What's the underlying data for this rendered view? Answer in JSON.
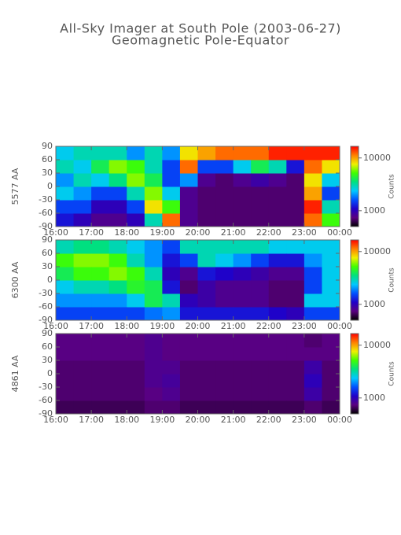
{
  "chart_data": [
    {
      "type": "heatmap",
      "title": "All-Sky Imager at South Pole (2003-06-27)",
      "subtitle": "Geomagnetic Pole-Equator",
      "ylabel": "5577 AA",
      "xlim": [
        16,
        24
      ],
      "xticks": [
        {
          "value": 16,
          "label": "16:00"
        },
        {
          "value": 17,
          "label": "17:00"
        },
        {
          "value": 18,
          "label": "18:00"
        },
        {
          "value": 19,
          "label": "19:00"
        },
        {
          "value": 20,
          "label": "20:00"
        },
        {
          "value": 21,
          "label": "21:00"
        },
        {
          "value": 22,
          "label": "22:00"
        },
        {
          "value": 23,
          "label": "23:00"
        },
        {
          "value": 24,
          "label": "00:00"
        }
      ],
      "ylim": [
        -90,
        90
      ],
      "yticks": [
        -90,
        -60,
        -30,
        0,
        30,
        60,
        90
      ],
      "xbins": [
        16,
        16.5,
        17,
        17.5,
        18,
        18.5,
        19,
        19.5,
        20,
        20.5,
        21,
        21.5,
        22,
        22.5,
        23,
        23.5,
        24
      ],
      "ybins": [
        -90,
        -60,
        -30,
        0,
        30,
        60,
        90
      ],
      "z": [
        [
          1200,
          1500,
          2500,
          2000,
          3000,
          2500
        ],
        [
          1000,
          1500,
          2000,
          3000,
          2500,
          3000
        ],
        [
          800,
          1000,
          1500,
          2500,
          4000,
          3000
        ],
        [
          800,
          1000,
          1500,
          3500,
          6000,
          3000
        ],
        [
          1000,
          1500,
          3000,
          6000,
          5000,
          2000
        ],
        [
          3000,
          8000,
          6000,
          4000,
          3000,
          3000
        ],
        [
          12000,
          5000,
          2500,
          1500,
          1500,
          2000
        ],
        [
          800,
          800,
          800,
          2000,
          12000,
          8000
        ],
        [
          700,
          700,
          700,
          800,
          1500,
          10000
        ],
        [
          700,
          700,
          700,
          700,
          1500,
          12000
        ],
        [
          700,
          700,
          700,
          800,
          2500,
          12000
        ],
        [
          700,
          700,
          700,
          900,
          4000,
          12000
        ],
        [
          700,
          700,
          700,
          800,
          3000,
          15000
        ],
        [
          700,
          700,
          700,
          700,
          1200,
          15000
        ],
        [
          12000,
          15000,
          10000,
          8000,
          12000,
          15000
        ],
        [
          5000,
          3000,
          1500,
          2500,
          8000,
          15000
        ]
      ],
      "colorbar": {
        "label": "Counts",
        "lim": [
          500,
          16600
        ],
        "ticks": [
          1000,
          10000
        ],
        "log": true
      },
      "colormap": [
        "#000000",
        "#5a0080",
        "#2000c8",
        "#0050ff",
        "#00c8ff",
        "#00e080",
        "#40ff00",
        "#f0f000",
        "#ff8000",
        "#ff0000"
      ]
    },
    {
      "type": "heatmap",
      "ylabel": "6300 AA",
      "xlim": [
        16,
        24
      ],
      "xticks": [
        {
          "value": 16,
          "label": "16:00"
        },
        {
          "value": 17,
          "label": "17:00"
        },
        {
          "value": 18,
          "label": "18:00"
        },
        {
          "value": 19,
          "label": "19:00"
        },
        {
          "value": 20,
          "label": "20:00"
        },
        {
          "value": 21,
          "label": "21:00"
        },
        {
          "value": 22,
          "label": "22:00"
        },
        {
          "value": 23,
          "label": "23:00"
        },
        {
          "value": 24,
          "label": "00:00"
        }
      ],
      "ylim": [
        -90,
        90
      ],
      "yticks": [
        -90,
        -60,
        -30,
        0,
        30,
        60,
        90
      ],
      "xbins": [
        16,
        16.5,
        17,
        17.5,
        18,
        18.5,
        19,
        19.5,
        20,
        20.5,
        21,
        21.5,
        22,
        22.5,
        23,
        23.5,
        24
      ],
      "ybins": [
        -90,
        -60,
        -30,
        0,
        30,
        60,
        90
      ],
      "z": [
        [
          1500,
          2000,
          2500,
          4000,
          5000,
          3000
        ],
        [
          1500,
          2000,
          3000,
          5000,
          6000,
          3500
        ],
        [
          1500,
          2000,
          3000,
          5000,
          6000,
          3500
        ],
        [
          1500,
          2000,
          3500,
          6000,
          5000,
          3000
        ],
        [
          1500,
          2500,
          4500,
          5000,
          3000,
          2500
        ],
        [
          1800,
          4000,
          4000,
          3000,
          2000,
          2000
        ],
        [
          2000,
          3000,
          1200,
          1000,
          1200,
          1500
        ],
        [
          1200,
          1000,
          700,
          800,
          1500,
          3000
        ],
        [
          1200,
          900,
          900,
          1200,
          3000,
          3000
        ],
        [
          1200,
          800,
          800,
          1100,
          2500,
          3000
        ],
        [
          1200,
          800,
          800,
          1000,
          2000,
          3000
        ],
        [
          1200,
          800,
          800,
          900,
          1500,
          3000
        ],
        [
          1100,
          700,
          700,
          800,
          1200,
          2500
        ],
        [
          1000,
          700,
          700,
          800,
          1200,
          2500
        ],
        [
          1500,
          2500,
          1500,
          1500,
          2000,
          2500
        ],
        [
          1500,
          2500,
          2500,
          2500,
          2500,
          2500
        ]
      ],
      "colorbar": {
        "label": "Counts",
        "lim": [
          500,
          16600
        ],
        "ticks": [
          1000,
          10000
        ],
        "log": true
      },
      "colormap": [
        "#000000",
        "#5a0080",
        "#2000c8",
        "#0050ff",
        "#00c8ff",
        "#00e080",
        "#40ff00",
        "#f0f000",
        "#ff8000",
        "#ff0000"
      ]
    },
    {
      "type": "heatmap",
      "ylabel": "4861 AA",
      "xlim": [
        16,
        24
      ],
      "xticks": [
        {
          "value": 16,
          "label": "16:00"
        },
        {
          "value": 17,
          "label": "17:00"
        },
        {
          "value": 18,
          "label": "18:00"
        },
        {
          "value": 19,
          "label": "19:00"
        },
        {
          "value": 20,
          "label": "20:00"
        },
        {
          "value": 21,
          "label": "21:00"
        },
        {
          "value": 22,
          "label": "22:00"
        },
        {
          "value": 23,
          "label": "23:00"
        },
        {
          "value": 24,
          "label": "00:00"
        }
      ],
      "ylim": [
        -90,
        90
      ],
      "yticks": [
        -90,
        -60,
        -30,
        0,
        30,
        60,
        90
      ],
      "xbins": [
        16,
        16.5,
        17,
        17.5,
        18,
        18.5,
        19,
        19.5,
        20,
        20.5,
        21,
        21.5,
        22,
        22.5,
        23,
        23.5,
        24
      ],
      "ybins": [
        -90,
        -60,
        -30,
        0,
        30,
        60,
        90
      ],
      "z": [
        [
          650,
          700,
          700,
          700,
          750,
          750
        ],
        [
          650,
          700,
          700,
          700,
          750,
          750
        ],
        [
          650,
          700,
          700,
          700,
          750,
          750
        ],
        [
          650,
          700,
          700,
          700,
          750,
          750
        ],
        [
          650,
          700,
          700,
          700,
          750,
          750
        ],
        [
          700,
          750,
          800,
          800,
          800,
          800
        ],
        [
          700,
          800,
          850,
          800,
          750,
          750
        ],
        [
          650,
          700,
          700,
          700,
          750,
          750
        ],
        [
          650,
          700,
          700,
          700,
          750,
          750
        ],
        [
          650,
          700,
          700,
          700,
          750,
          750
        ],
        [
          650,
          700,
          700,
          700,
          750,
          750
        ],
        [
          650,
          700,
          700,
          700,
          750,
          750
        ],
        [
          650,
          700,
          700,
          700,
          750,
          750
        ],
        [
          650,
          700,
          700,
          700,
          750,
          750
        ],
        [
          700,
          900,
          1000,
          900,
          750,
          700
        ],
        [
          650,
          700,
          700,
          700,
          750,
          750
        ]
      ],
      "colorbar": {
        "label": "Counts",
        "lim": [
          500,
          16600
        ],
        "ticks": [
          1000,
          10000
        ],
        "log": true
      },
      "colormap": [
        "#000000",
        "#5a0080",
        "#2000c8",
        "#0050ff",
        "#00c8ff",
        "#00e080",
        "#40ff00",
        "#f0f000",
        "#ff8000",
        "#ff0000"
      ]
    }
  ]
}
